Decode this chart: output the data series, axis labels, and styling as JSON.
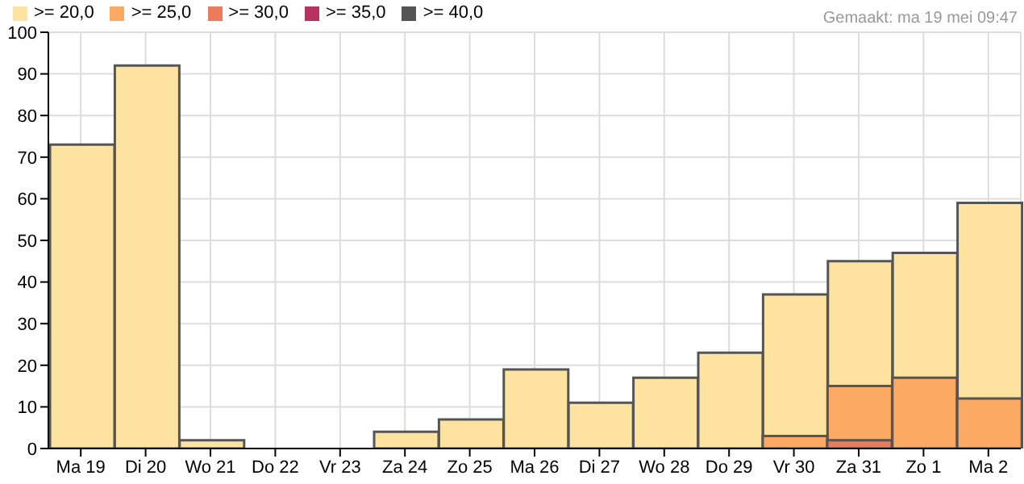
{
  "chart_data": {
    "type": "bar",
    "categories": [
      "Ma 19",
      "Di 20",
      "Wo 21",
      "Do 22",
      "Vr 23",
      "Za 24",
      "Zo 25",
      "Ma 26",
      "Di 27",
      "Wo 28",
      "Do 29",
      "Vr 30",
      "Za 31",
      "Zo 1",
      "Ma 2"
    ],
    "series": [
      {
        "name": ">= 20,0",
        "color": "#fee3a0",
        "values": [
          73,
          92,
          2,
          0,
          0,
          4,
          7,
          19,
          11,
          17,
          23,
          37,
          45,
          47,
          59
        ]
      },
      {
        "name": ">= 25,0",
        "color": "#fca964",
        "values": [
          0,
          0,
          0,
          0,
          0,
          0,
          0,
          0,
          0,
          0,
          0,
          3,
          15,
          17,
          12
        ]
      },
      {
        "name": ">= 30,0",
        "color": "#ee7a5c",
        "values": [
          0,
          0,
          0,
          0,
          0,
          0,
          0,
          0,
          0,
          0,
          0,
          0,
          2,
          0,
          0
        ]
      },
      {
        "name": ">= 35,0",
        "color": "#b8325e",
        "values": [
          0,
          0,
          0,
          0,
          0,
          0,
          0,
          0,
          0,
          0,
          0,
          0,
          0,
          0,
          0
        ]
      },
      {
        "name": ">= 40,0",
        "color": "#555555",
        "values": [
          0,
          0,
          0,
          0,
          0,
          0,
          0,
          0,
          0,
          0,
          0,
          0,
          0,
          0,
          0
        ]
      }
    ],
    "ylim": [
      0,
      100
    ],
    "yticks": [
      0,
      10,
      20,
      30,
      40,
      50,
      60,
      70,
      80,
      90,
      100
    ],
    "grid": true,
    "legend": "top left",
    "annotations": [
      "Gemaakt: ma 19 mei 09:47"
    ]
  }
}
